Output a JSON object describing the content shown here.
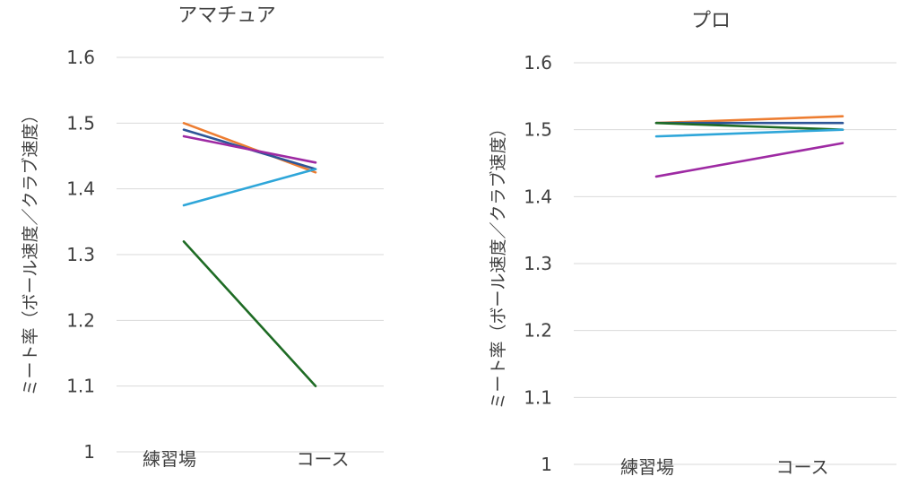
{
  "chart_data": [
    {
      "type": "line",
      "title": "アマチュア",
      "xlabel": "",
      "ylabel": "ミート率（ボール速度／クラブ速度）",
      "categories": [
        "練習場",
        "コース"
      ],
      "ylim": [
        1,
        1.6
      ],
      "yticks": [
        "1",
        "1.1",
        "1.2",
        "1.3",
        "1.4",
        "1.5",
        "1.6"
      ],
      "grid": true,
      "series": [
        {
          "color": "#ed7d31",
          "values": [
            1.5,
            1.425
          ]
        },
        {
          "color": "#2e5597",
          "values": [
            1.49,
            1.43
          ]
        },
        {
          "color": "#9e2aa3",
          "values": [
            1.48,
            1.44
          ]
        },
        {
          "color": "#2ea6d9",
          "values": [
            1.375,
            1.43
          ]
        },
        {
          "color": "#1e6b24",
          "values": [
            1.32,
            1.1
          ]
        }
      ]
    },
    {
      "type": "line",
      "title": "プロ",
      "xlabel": "",
      "ylabel": "ミート率（ボール速度／クラブ速度）",
      "categories": [
        "練習場",
        "コース"
      ],
      "ylim": [
        1,
        1.6
      ],
      "yticks": [
        "1",
        "1.1",
        "1.2",
        "1.3",
        "1.4",
        "1.5",
        "1.6"
      ],
      "grid": true,
      "series": [
        {
          "color": "#ed7d31",
          "values": [
            1.51,
            1.52
          ]
        },
        {
          "color": "#2e5597",
          "values": [
            1.51,
            1.51
          ]
        },
        {
          "color": "#1e6b24",
          "values": [
            1.51,
            1.5
          ]
        },
        {
          "color": "#2ea6d9",
          "values": [
            1.49,
            1.5
          ]
        },
        {
          "color": "#9e2aa3",
          "values": [
            1.43,
            1.48
          ]
        }
      ]
    }
  ]
}
